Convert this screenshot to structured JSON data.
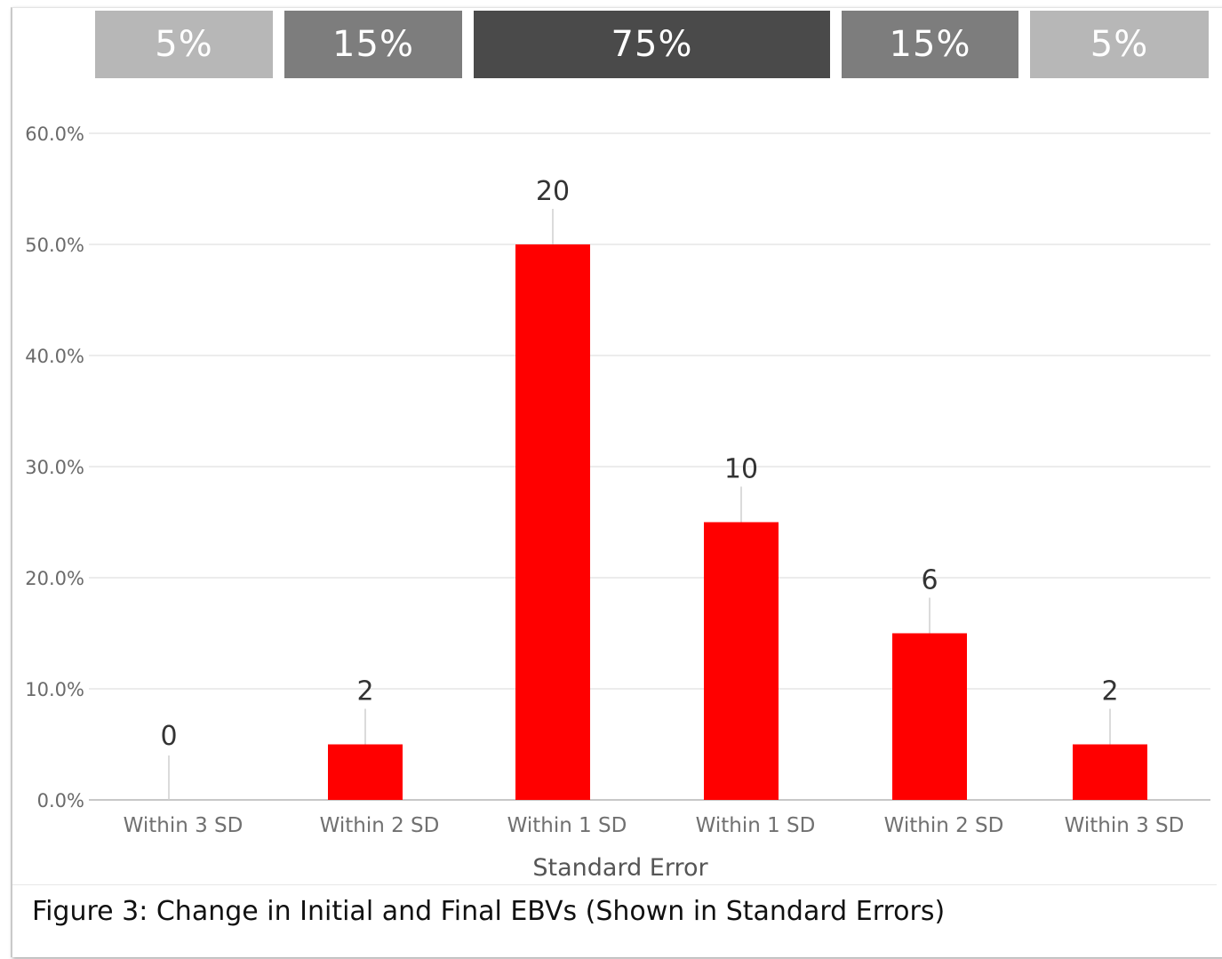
{
  "band": [
    {
      "label": "5%",
      "color": "#b7b7b7"
    },
    {
      "label": "15%",
      "color": "#7d7d7d"
    },
    {
      "label": "75%",
      "color": "#4a4a4a"
    },
    {
      "label": "15%",
      "color": "#7d7d7d"
    },
    {
      "label": "5%",
      "color": "#b7b7b7"
    }
  ],
  "caption": "Figure 3: Change in Initial and Final EBVs (Shown in Standard Errors)",
  "chart_data": {
    "type": "bar",
    "categories": [
      "Within 3 SD",
      "Within 2 SD",
      "Within 1 SD",
      "Within 1 SD",
      "Within 2 SD",
      "Within 3 SD"
    ],
    "values": [
      0,
      5,
      50,
      25,
      15,
      5
    ],
    "data_labels": [
      "0",
      "2",
      "20",
      "10",
      "6",
      "2"
    ],
    "yticks": [
      "0.0%",
      "10.0%",
      "20.0%",
      "30.0%",
      "40.0%",
      "50.0%",
      "60.0%"
    ],
    "ylim": [
      0,
      60
    ],
    "xlabel": "Standard Error",
    "ylabel": "",
    "title": "",
    "bar_color": "#ff0000",
    "grid": true
  }
}
